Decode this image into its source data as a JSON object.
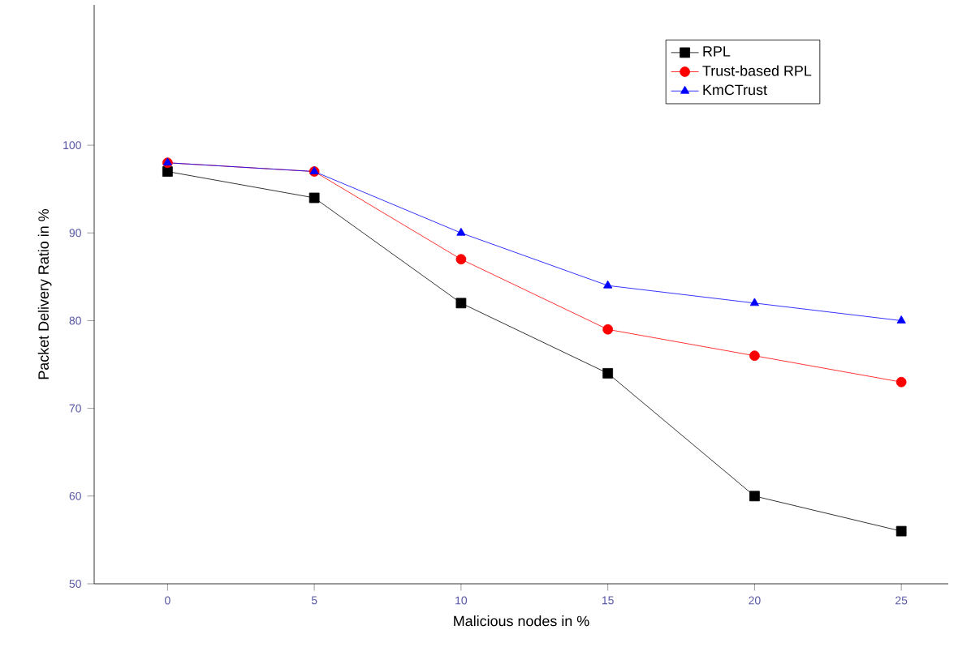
{
  "chart_data": {
    "type": "line",
    "xlabel": "Malicious nodes in %",
    "ylabel": "Packet Delivery Ratio in %",
    "x": [
      0,
      5,
      10,
      15,
      20,
      25
    ],
    "series": [
      {
        "name": "RPL",
        "color": "#000000",
        "marker": "square",
        "values": [
          97,
          94,
          82,
          74,
          60,
          56
        ]
      },
      {
        "name": "Trust-based RPL",
        "color": "#ff0000",
        "marker": "circle",
        "values": [
          98,
          97,
          87,
          79,
          76,
          73
        ]
      },
      {
        "name": "KmCTrust",
        "color": "#0000ff",
        "marker": "triangle",
        "values": [
          98,
          97,
          90,
          84,
          82,
          80
        ]
      }
    ],
    "xlim": [
      -2.5,
      26.6
    ],
    "ylim": [
      50,
      116
    ],
    "xticks": [
      0,
      5,
      10,
      15,
      20,
      25
    ],
    "yticks": [
      50,
      60,
      70,
      80,
      90,
      100
    ],
    "legend": "top right",
    "grid": false,
    "line_style": "solid"
  }
}
